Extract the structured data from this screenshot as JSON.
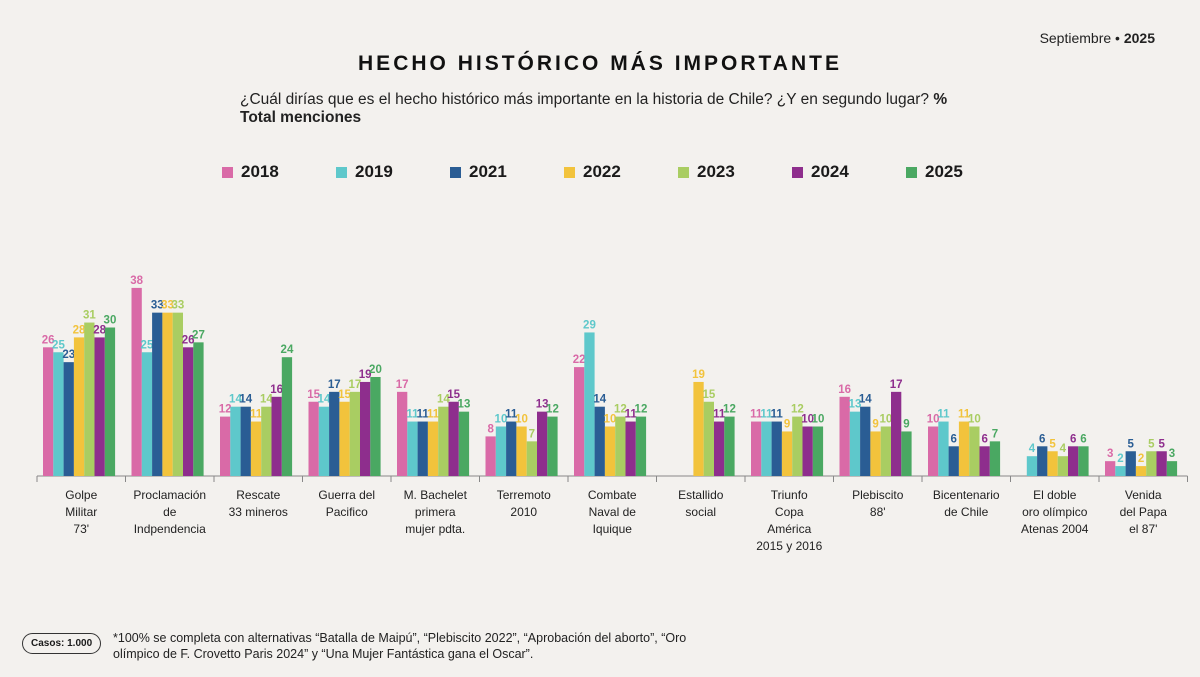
{
  "header": {
    "date_month": "Septiembre •",
    "date_year": "2025",
    "title": "HECHO HISTÓRICO MÁS IMPORTANTE",
    "subtitle_main": "¿Cuál dirías que es el hecho histórico más importante en la historia de Chile? ¿Y en segundo lugar?",
    "subtitle_bold": "% Total menciones"
  },
  "footer": {
    "cases": "Casos: 1.000",
    "footnote": "*100% se completa con alternativas “Batalla de Maipú”, “Plebiscito 2022”, “Aprobación del aborto”, “Oro olímpico de F. Crovetto  Paris 2024” y “Una Mujer Fantástica gana el Oscar”."
  },
  "chart_data": {
    "type": "bar",
    "title": "HECHO HISTÓRICO MÁS IMPORTANTE",
    "ylim": [
      0,
      40
    ],
    "grid": false,
    "legend_position": "top",
    "categories": [
      [
        "Golpe",
        "Militar",
        "73'"
      ],
      [
        "Proclamación",
        "de",
        "Indpendencia"
      ],
      [
        "Rescate",
        "33 mineros"
      ],
      [
        "Guerra del",
        "Pacifico"
      ],
      [
        "M. Bachelet",
        "primera",
        "mujer pdta."
      ],
      [
        "Terremoto",
        "2010"
      ],
      [
        "Combate",
        "Naval de",
        "Iquique"
      ],
      [
        "Estallido",
        "social"
      ],
      [
        "Triunfo",
        "Copa",
        "América",
        "2015 y 2016"
      ],
      [
        "Plebiscito",
        "88'"
      ],
      [
        "Bicentenario",
        "de Chile"
      ],
      [
        "El doble",
        "oro olímpico",
        "Atenas 2004"
      ],
      [
        "Venida",
        "del Papa",
        "el 87'"
      ]
    ],
    "series": [
      {
        "name": "2018",
        "color": "#d96aa7",
        "values": [
          26,
          38,
          12,
          15,
          17,
          8,
          22,
          null,
          11,
          16,
          10,
          null,
          3
        ]
      },
      {
        "name": "2019",
        "color": "#5ec8cb",
        "values": [
          25,
          25,
          14,
          14,
          11,
          10,
          29,
          null,
          11,
          13,
          11,
          4,
          2
        ]
      },
      {
        "name": "2021",
        "color": "#2a5d94",
        "values": [
          23,
          33,
          14,
          17,
          11,
          11,
          14,
          null,
          11,
          14,
          6,
          6,
          5
        ]
      },
      {
        "name": "2022",
        "color": "#f2c33c",
        "values": [
          28,
          33,
          11,
          15,
          11,
          10,
          10,
          19,
          9,
          9,
          11,
          5,
          2
        ]
      },
      {
        "name": "2023",
        "color": "#a9cd62",
        "values": [
          31,
          33,
          14,
          17,
          14,
          7,
          12,
          15,
          12,
          10,
          10,
          4,
          5
        ]
      },
      {
        "name": "2024",
        "color": "#8e2e8d",
        "values": [
          28,
          26,
          16,
          19,
          15,
          13,
          11,
          11,
          10,
          17,
          6,
          6,
          5
        ]
      },
      {
        "name": "2025",
        "color": "#4aa862",
        "values": [
          30,
          27,
          24,
          20,
          13,
          12,
          12,
          12,
          10,
          9,
          7,
          6,
          3
        ]
      }
    ]
  }
}
